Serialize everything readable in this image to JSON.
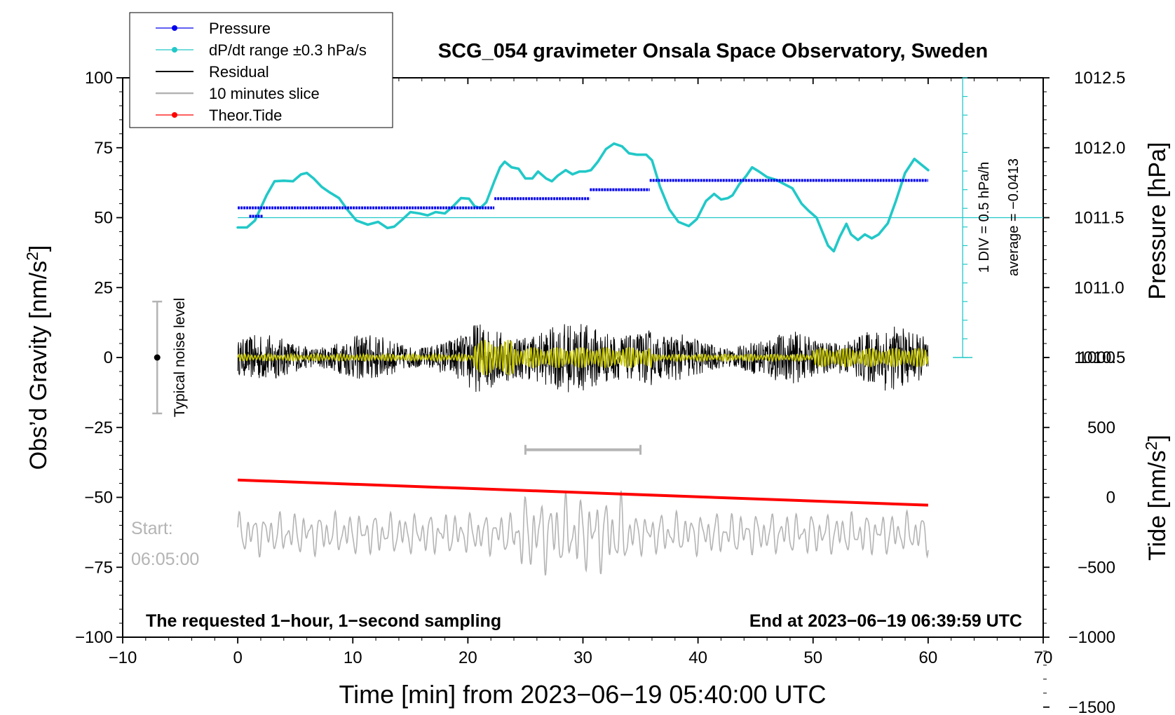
{
  "chart_data": {
    "type": "line",
    "title": "SCG_054 gravimeter Onsala Space Observatory, Sweden",
    "xlabel": "Time [min] from 2023−06−19 05:40:00 UTC",
    "ylabel_left": "Obs’d Gravity [nm/s",
    "ylabel_left_sup": "2",
    "ylabel_left_close": "]",
    "ylabel_right_top": "Pressure [hPa]",
    "ylabel_right_bottom": "Tide [nm/s",
    "ylabel_right_bottom_sup": "2",
    "ylabel_right_bottom_close": "]",
    "xlim": [
      -10,
      70
    ],
    "ylim": [
      -100,
      100
    ],
    "x_ticks": [
      {
        "value": -10,
        "label": "−10"
      },
      {
        "value": 0,
        "label": "0"
      },
      {
        "value": 10,
        "label": "10"
      },
      {
        "value": 20,
        "label": "20"
      },
      {
        "value": 30,
        "label": "30"
      },
      {
        "value": 40,
        "label": "40"
      },
      {
        "value": 50,
        "label": "50"
      },
      {
        "value": 60,
        "label": "60"
      },
      {
        "value": 70,
        "label": "70"
      }
    ],
    "y_ticks": [
      {
        "value": 100,
        "label": "100"
      },
      {
        "value": 75,
        "label": "75"
      },
      {
        "value": 50,
        "label": "50"
      },
      {
        "value": 25,
        "label": "25"
      },
      {
        "value": 0,
        "label": "0"
      },
      {
        "value": -25,
        "label": "−25"
      },
      {
        "value": -50,
        "label": "−50"
      },
      {
        "value": -75,
        "label": "−75"
      },
      {
        "value": -100,
        "label": "−100"
      }
    ],
    "pressure_ticks": [
      {
        "value": 1012.5,
        "label": "1012.5"
      },
      {
        "value": 1012.0,
        "label": "1012.0"
      },
      {
        "value": 1011.5,
        "label": "1011.5"
      },
      {
        "value": 1011.0,
        "label": "1011.0"
      },
      {
        "value": 1010.5,
        "label": "1010.5"
      }
    ],
    "pressure_mapping": {
      "hpa_at_gravity_50": 1011.5,
      "gravity_units_per_hpa": 50
    },
    "tide_ticks": [
      {
        "value": 1000,
        "label": "1000"
      },
      {
        "value": 500,
        "label": "500"
      },
      {
        "value": 0,
        "label": "0"
      },
      {
        "value": -500,
        "label": "−500"
      },
      {
        "value": -1000,
        "label": "−1000"
      },
      {
        "value": -1500,
        "label": "−1500"
      }
    ],
    "tide_mapping": {
      "gravity_at_tide_0": -50,
      "gravity_units_per_tide": 0.05
    },
    "legend": [
      {
        "label": "Pressure",
        "color": "#0000ee",
        "marker": true
      },
      {
        "label": "dP/dt range ±0.3 hPa/s",
        "color": "#22c8c8",
        "marker": true
      },
      {
        "label": "Residual",
        "color": "#000000",
        "marker": false
      },
      {
        "label": "10 minutes slice",
        "color": "#b4b4b4",
        "marker": false
      },
      {
        "label": "Theor.Tide",
        "color": "#ff0000",
        "marker": true
      }
    ],
    "series": [
      {
        "name": "Pressure",
        "color": "#0000ee",
        "segments": [
          {
            "x_start": 0.0,
            "x_end": 22.3,
            "y": 53.5
          },
          {
            "x_start": 1.0,
            "x_end": 2.2,
            "y": 50.5
          },
          {
            "x_start": 22.3,
            "x_end": 30.6,
            "y": 56.8
          },
          {
            "x_start": 30.6,
            "x_end": 35.8,
            "y": 60.0
          },
          {
            "x_start": 35.8,
            "x_end": 60.0,
            "y": 63.3
          }
        ]
      },
      {
        "name": "dP/dt",
        "color": "#22c8c8",
        "points": [
          [
            0,
            46.5
          ],
          [
            0.8,
            46.5
          ],
          [
            1.5,
            49
          ],
          [
            2.5,
            58
          ],
          [
            3.2,
            63
          ],
          [
            4,
            63.2
          ],
          [
            4.8,
            63
          ],
          [
            5.5,
            65.5
          ],
          [
            6,
            66
          ],
          [
            6.6,
            64
          ],
          [
            7.3,
            61
          ],
          [
            8,
            59
          ],
          [
            8.8,
            57
          ],
          [
            9.5,
            53
          ],
          [
            10.3,
            49
          ],
          [
            11.3,
            47.5
          ],
          [
            12.2,
            48.5
          ],
          [
            13,
            46.3
          ],
          [
            13.6,
            46.8
          ],
          [
            14.3,
            49.3
          ],
          [
            15,
            52
          ],
          [
            15.8,
            51.5
          ],
          [
            16.5,
            50.8
          ],
          [
            17.2,
            52
          ],
          [
            18,
            51.5
          ],
          [
            18.7,
            54
          ],
          [
            19.4,
            57
          ],
          [
            20.1,
            56.8
          ],
          [
            20.6,
            54
          ],
          [
            21.1,
            53.5
          ],
          [
            21.6,
            55.5
          ],
          [
            22.3,
            63
          ],
          [
            22.8,
            68
          ],
          [
            23.2,
            70
          ],
          [
            23.8,
            68
          ],
          [
            24.4,
            67.5
          ],
          [
            25,
            64
          ],
          [
            25.6,
            64
          ],
          [
            26.1,
            66.5
          ],
          [
            26.8,
            64
          ],
          [
            27.3,
            63
          ],
          [
            27.8,
            65
          ],
          [
            28.5,
            67
          ],
          [
            29.1,
            65.5
          ],
          [
            29.7,
            66.5
          ],
          [
            30.2,
            66.5
          ],
          [
            30.7,
            67
          ],
          [
            31.3,
            70
          ],
          [
            32,
            74.5
          ],
          [
            32.7,
            76.5
          ],
          [
            33.4,
            75.5
          ],
          [
            34,
            73
          ],
          [
            34.7,
            72.5
          ],
          [
            35.5,
            72.5
          ],
          [
            36,
            70.5
          ],
          [
            36.7,
            61
          ],
          [
            37.5,
            53
          ],
          [
            38.3,
            48.5
          ],
          [
            39.2,
            47
          ],
          [
            39.9,
            49.5
          ],
          [
            40.7,
            56
          ],
          [
            41.4,
            58.5
          ],
          [
            42,
            56.5
          ],
          [
            42.6,
            57
          ],
          [
            43,
            58
          ],
          [
            43.6,
            62
          ],
          [
            44.2,
            65
          ],
          [
            44.7,
            68
          ],
          [
            45.3,
            66.5
          ],
          [
            46,
            64.5
          ],
          [
            46.8,
            63.5
          ],
          [
            47.5,
            62
          ],
          [
            48.2,
            60.5
          ],
          [
            49,
            55
          ],
          [
            49.6,
            52.5
          ],
          [
            50.3,
            50
          ],
          [
            50.9,
            44
          ],
          [
            51.3,
            40
          ],
          [
            51.8,
            38
          ],
          [
            52.3,
            43
          ],
          [
            52.9,
            47.8
          ],
          [
            53.3,
            44
          ],
          [
            53.9,
            42
          ],
          [
            54.5,
            44
          ],
          [
            55.1,
            42.6
          ],
          [
            55.7,
            44
          ],
          [
            56.5,
            48
          ],
          [
            57.2,
            56
          ],
          [
            58,
            66
          ],
          [
            58.8,
            71
          ],
          [
            59.4,
            69
          ],
          [
            60,
            67
          ]
        ]
      },
      {
        "name": "Residual",
        "color": "#000000",
        "x_range": [
          0,
          60
        ],
        "mean": 0
      },
      {
        "name": "Residual (filtered)",
        "color": "#c8c800",
        "x_range": [
          0,
          60
        ],
        "mean": 0
      },
      {
        "name": "Theor.Tide",
        "color": "#ff0000",
        "x": [
          0,
          60
        ],
        "y": [
          -43.8,
          -52.8
        ]
      },
      {
        "name": "10 minutes slice",
        "color": "#b4b4b4",
        "x_range": [
          0,
          60
        ],
        "mean": -63
      }
    ],
    "ten_minute_bar": {
      "x_start": 25,
      "x_end": 35,
      "y": -33
    },
    "noise_level": {
      "x": -7,
      "y": 0,
      "half_range": 20,
      "label": "Typical noise level"
    },
    "pressure_scale": {
      "x": 63,
      "y_top": 100,
      "y_bottom": 0,
      "divisions": 15,
      "label_div": "1 DIV = 0.5 hPa/h",
      "label_avg": "average = −0.0413"
    },
    "reference_line_y": 50,
    "start_label_1": "Start:",
    "start_label_2": "06:05:00",
    "footer_left": "The requested 1−hour, 1−second sampling",
    "footer_right": "End at 2023−06−19 06:39:59 UTC"
  }
}
